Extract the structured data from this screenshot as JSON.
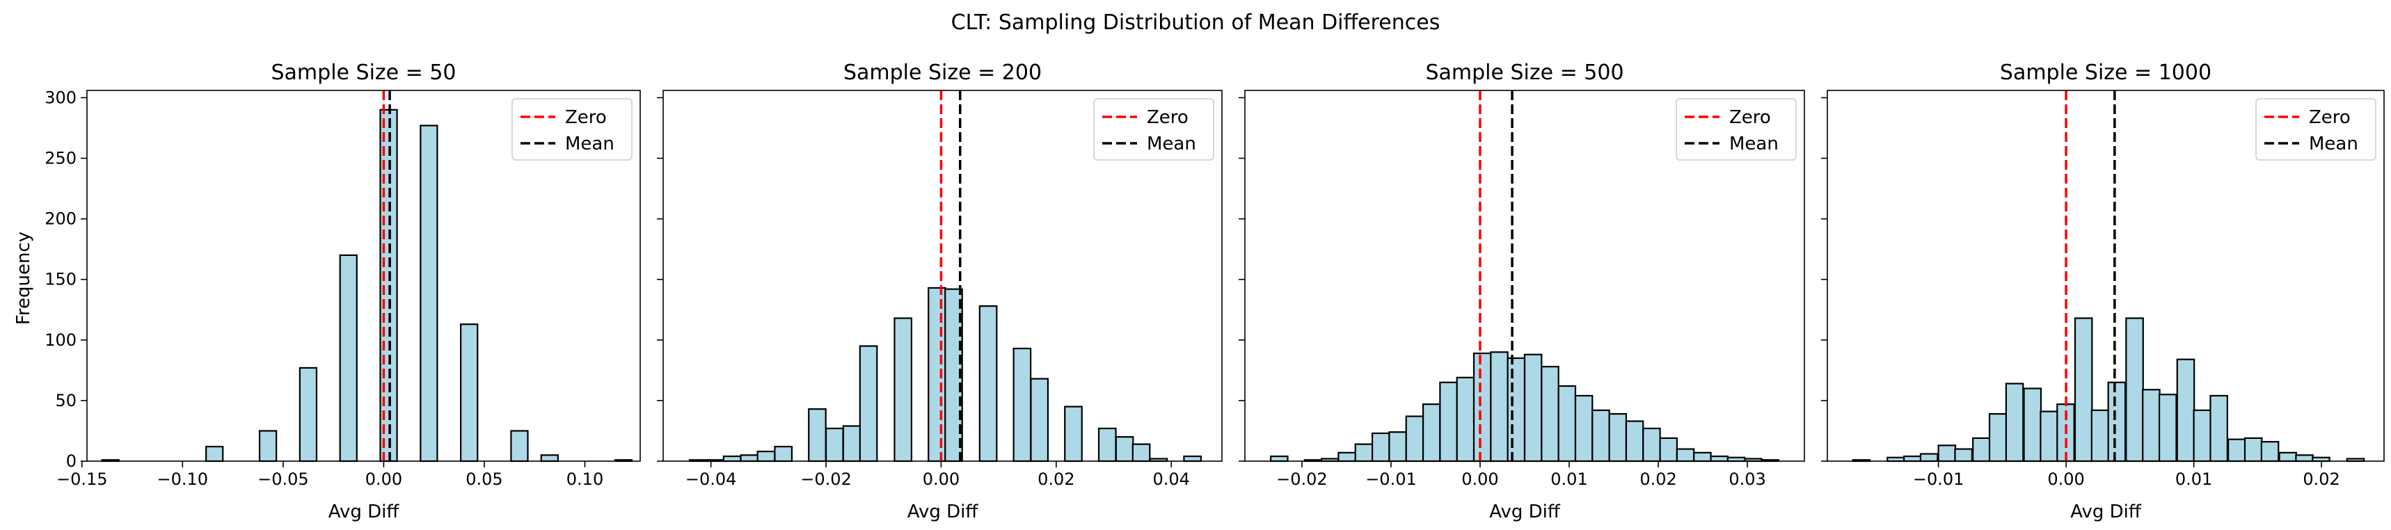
{
  "figure": {
    "title": "CLT: Sampling Distribution of Mean Differences",
    "ylabel": "Frequency",
    "colors": {
      "bar_fill": "#add8e6",
      "bar_edge": "#000000",
      "zero_line": "#ff0000",
      "mean_line": "#000000"
    },
    "legend_placement": "top-right"
  },
  "chart_data": [
    {
      "type": "bar",
      "title": "Sample Size = 50",
      "xlabel": "Avg Diff",
      "ylabel": "Frequency",
      "xlim": [
        -0.1475,
        0.1275
      ],
      "ylim": [
        0,
        306
      ],
      "xticks": [
        -0.15,
        -0.1,
        -0.05,
        0.0,
        0.05,
        0.1
      ],
      "xtick_labels": [
        "−0.15",
        "−0.10",
        "−0.05",
        "0.00",
        "0.05",
        "0.10"
      ],
      "yticks": [
        0,
        50,
        100,
        150,
        200,
        250,
        300
      ],
      "ytick_labels": [
        "0",
        "50",
        "100",
        "150",
        "200",
        "250",
        "300"
      ],
      "bin_width": 0.00833,
      "bin_starts": [
        -0.14,
        -0.0883,
        -0.0617,
        -0.0417,
        -0.0217,
        -0.0017,
        0.0183,
        0.0383,
        0.0633,
        0.0783,
        0.115
      ],
      "values": [
        1,
        12,
        25,
        77,
        170,
        290,
        277,
        113,
        25,
        5,
        1
      ],
      "zero": 0.0,
      "mean": 0.003,
      "legend": [
        "Zero",
        "Mean"
      ]
    },
    {
      "type": "bar",
      "title": "Sample Size = 200",
      "xlabel": "Avg Diff",
      "ylabel": "",
      "xlim": [
        -0.0483,
        0.0488
      ],
      "ylim": [
        0,
        306
      ],
      "xticks": [
        -0.04,
        -0.02,
        0.0,
        0.02,
        0.04
      ],
      "xtick_labels": [
        "−0.04",
        "−0.02",
        "0.00",
        "0.02",
        "0.04"
      ],
      "yticks": [
        0,
        50,
        100,
        150,
        200,
        250,
        300
      ],
      "ytick_labels": [
        "",
        "",
        "",
        "",
        "",
        "",
        ""
      ],
      "bin_width": 0.00296,
      "bin_starts": [
        -0.0437,
        -0.0407,
        -0.0378,
        -0.0348,
        -0.0319,
        -0.0289,
        -0.0259,
        -0.023,
        -0.02,
        -0.017,
        -0.0141,
        -0.0111,
        -0.0081,
        -0.0052,
        -0.0022,
        0.0007,
        0.0037,
        0.0067,
        0.0096,
        0.0126,
        0.0156,
        0.0185,
        0.0215,
        0.0244,
        0.0274,
        0.0304,
        0.0333,
        0.0363,
        0.0393,
        0.0422
      ],
      "values": [
        1,
        1,
        4,
        5,
        8,
        12,
        0,
        43,
        27,
        29,
        95,
        0,
        118,
        0,
        143,
        142,
        0,
        128,
        0,
        93,
        68,
        0,
        45,
        0,
        27,
        20,
        14,
        2,
        0,
        4
      ],
      "zero": 0.0,
      "mean": 0.0033,
      "legend": [
        "Zero",
        "Mean"
      ]
    },
    {
      "type": "bar",
      "title": "Sample Size = 500",
      "xlabel": "Avg Diff",
      "ylabel": "",
      "xlim": [
        -0.0264,
        0.0364
      ],
      "ylim": [
        0,
        306
      ],
      "xticks": [
        -0.02,
        -0.01,
        0.0,
        0.01,
        0.02,
        0.03
      ],
      "xtick_labels": [
        "−0.02",
        "−0.01",
        "0.00",
        "0.01",
        "0.02",
        "0.03"
      ],
      "yticks": [
        0,
        50,
        100,
        150,
        200,
        250,
        300
      ],
      "ytick_labels": [
        "",
        "",
        "",
        "",
        "",
        "",
        ""
      ],
      "bin_width": 0.0019,
      "bin_starts": [
        -0.0235,
        -0.0216,
        -0.0197,
        -0.0178,
        -0.0159,
        -0.014,
        -0.0121,
        -0.0102,
        -0.0083,
        -0.0064,
        -0.0045,
        -0.0026,
        -0.0007,
        0.0012,
        0.0031,
        0.005,
        0.0069,
        0.0088,
        0.0107,
        0.0126,
        0.0145,
        0.0164,
        0.0183,
        0.0202,
        0.0221,
        0.024,
        0.0259,
        0.0278,
        0.0297,
        0.0316
      ],
      "values": [
        4,
        0,
        1,
        2,
        7,
        14,
        23,
        24,
        37,
        47,
        65,
        69,
        89,
        90,
        85,
        88,
        78,
        62,
        54,
        42,
        39,
        33,
        27,
        19,
        10,
        7,
        4,
        3,
        2,
        1
      ],
      "zero": 0.0,
      "mean": 0.0036,
      "legend": [
        "Zero",
        "Mean"
      ]
    },
    {
      "type": "bar",
      "title": "Sample Size = 1000",
      "xlabel": "Avg Diff",
      "ylabel": "",
      "xlim": [
        -0.0187,
        0.0249
      ],
      "ylim": [
        0,
        306
      ],
      "xticks": [
        -0.01,
        0.0,
        0.01,
        0.02
      ],
      "xtick_labels": [
        "−0.01",
        "0.00",
        "0.01",
        "0.02"
      ],
      "yticks": [
        0,
        50,
        100,
        150,
        200,
        250,
        300
      ],
      "ytick_labels": [
        "",
        "",
        "",
        "",
        "",
        "",
        ""
      ],
      "bin_width": 0.00133,
      "bin_starts": [
        -0.0167,
        -0.0153,
        -0.014,
        -0.0127,
        -0.0114,
        -0.01,
        -0.0087,
        -0.0073,
        -0.006,
        -0.0047,
        -0.0033,
        -0.002,
        -0.0007,
        0.0007,
        0.002,
        0.0033,
        0.0047,
        0.006,
        0.0073,
        0.0087,
        0.01,
        0.0113,
        0.0127,
        0.014,
        0.0153,
        0.0167,
        0.018,
        0.0193,
        0.0207,
        0.022
      ],
      "values": [
        1,
        0,
        3,
        4,
        6,
        13,
        10,
        19,
        39,
        64,
        60,
        41,
        47,
        118,
        42,
        65,
        118,
        59,
        55,
        84,
        42,
        54,
        18,
        19,
        16,
        7,
        5,
        3,
        0,
        2
      ],
      "zero": 0.0,
      "mean": 0.0038,
      "legend": [
        "Zero",
        "Mean"
      ]
    }
  ]
}
